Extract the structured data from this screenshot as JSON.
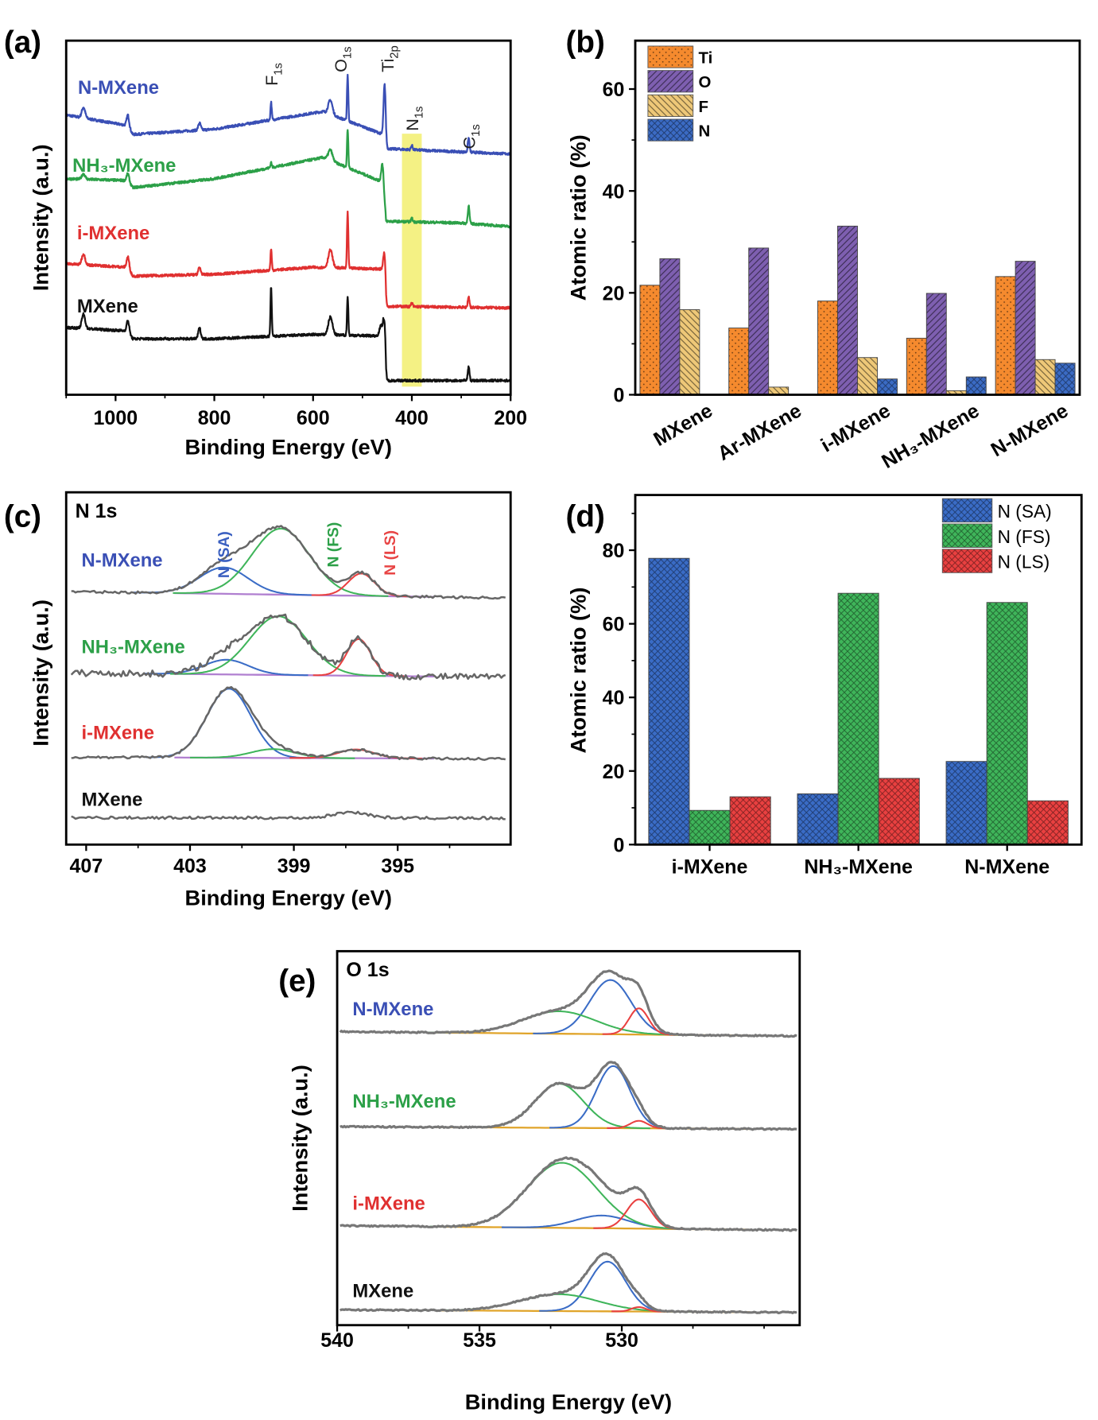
{
  "figure": {
    "panel_labels": [
      "(a)",
      "(b)",
      "(c)",
      "(d)",
      "(e)"
    ]
  },
  "chart_data": [
    {
      "panel": "(a)",
      "type": "line",
      "xlabel": "Binding Energy (eV)",
      "ylabel": "Intensity (a.u.)",
      "xlim": [
        1100,
        200
      ],
      "x_reversed": true,
      "xticks": [
        1000,
        800,
        600,
        400,
        200
      ],
      "ylim": [
        0,
        100
      ],
      "grid": false,
      "highlight_band": [
        380,
        420
      ],
      "highlight_color": "#f2ee6e",
      "annotations": [
        {
          "main": "F",
          "sub": "1s",
          "x": 685
        },
        {
          "main": "O",
          "sub": "1s",
          "x": 545
        },
        {
          "main": "Ti",
          "sub": "2p",
          "x": 450
        },
        {
          "main": "N",
          "sub": "1s",
          "x": 400
        },
        {
          "main": "C",
          "sub": "1s",
          "x": 285
        }
      ],
      "series": [
        {
          "name": "N-MXene",
          "color": "#3a4fb5",
          "background": [
            [
              200,
              68
            ],
            [
              452,
              69.5
            ],
            [
              458,
              73.5
            ],
            [
              580,
              80
            ],
            [
              800,
              75
            ],
            [
              965,
              73.5
            ],
            [
              975,
              76
            ],
            [
              1100,
              79
            ]
          ],
          "peaks": [
            [
              285,
              4,
              4
            ],
            [
              400,
              1.2,
              4
            ],
            [
              455,
              16,
              5
            ],
            [
              530,
              13,
              3
            ],
            [
              565,
              4,
              10
            ],
            [
              685,
              5,
              3
            ],
            [
              830,
              2,
              6
            ],
            [
              975,
              3,
              6
            ],
            [
              1065,
              3,
              8
            ]
          ]
        },
        {
          "name": "NH₃-MXene",
          "color": "#2ca048",
          "background": [
            [
              200,
              47.5
            ],
            [
              300,
              48.5
            ],
            [
              452,
              49
            ],
            [
              458,
              60
            ],
            [
              580,
              67
            ],
            [
              800,
              61
            ],
            [
              965,
              58.5
            ],
            [
              975,
              60.5
            ],
            [
              1100,
              61
            ]
          ],
          "peaks": [
            [
              285,
              5,
              4
            ],
            [
              400,
              1,
              4
            ],
            [
              460,
              5,
              5
            ],
            [
              530,
              11,
              3
            ],
            [
              565,
              3,
              10
            ],
            [
              685,
              1.5,
              3
            ],
            [
              975,
              2,
              6
            ],
            [
              1065,
              1.5,
              8
            ]
          ]
        },
        {
          "name": "i-MXene",
          "color": "#e03030",
          "background": [
            [
              200,
              24.5
            ],
            [
              452,
              25
            ],
            [
              458,
              35.5
            ],
            [
              600,
              36
            ],
            [
              800,
              34
            ],
            [
              965,
              33.5
            ],
            [
              975,
              36
            ],
            [
              1100,
              37
            ]
          ],
          "peaks": [
            [
              285,
              3,
              4
            ],
            [
              400,
              1,
              4
            ],
            [
              455,
              9,
              5
            ],
            [
              530,
              16,
              3
            ],
            [
              565,
              5,
              10
            ],
            [
              685,
              6,
              3
            ],
            [
              830,
              2,
              6
            ],
            [
              975,
              3,
              6
            ],
            [
              1065,
              3,
              8
            ]
          ]
        },
        {
          "name": "MXene",
          "color": "#111111",
          "background": [
            [
              200,
              4
            ],
            [
              452,
              4
            ],
            [
              458,
              16.6
            ],
            [
              600,
              17
            ],
            [
              800,
              15.8
            ],
            [
              965,
              15.8
            ],
            [
              975,
              18
            ],
            [
              1100,
              19
            ]
          ],
          "peaks": [
            [
              285,
              4,
              4
            ],
            [
              455,
              9,
              5
            ],
            [
              462,
              3,
              8
            ],
            [
              530,
              11,
              3
            ],
            [
              565,
              5,
              10
            ],
            [
              685,
              14,
              3
            ],
            [
              830,
              3,
              6
            ],
            [
              975,
              3,
              6
            ],
            [
              1065,
              4,
              8
            ]
          ]
        }
      ]
    },
    {
      "panel": "(b)",
      "type": "bar",
      "ylabel": "Atomic ratio (%)",
      "xlabel": "",
      "ylim": [
        0,
        69.5
      ],
      "yticks": [
        0,
        20,
        40,
        60
      ],
      "legend": "top-left",
      "categories": [
        "MXene",
        "Ar-MXene",
        "i-MXene",
        "NH₃-MXene",
        "N-MXene"
      ],
      "series": [
        {
          "name": "Ti",
          "color": "#f58a2e",
          "pattern": "dots",
          "values": [
            21.5,
            13.1,
            18.4,
            11.1,
            23.2
          ]
        },
        {
          "name": "O",
          "color": "#7e5fb0",
          "pattern": "right-hatch",
          "values": [
            26.7,
            28.8,
            33.1,
            19.9,
            26.2
          ]
        },
        {
          "name": "F",
          "color": "#eec878",
          "pattern": "left-hatch",
          "values": [
            16.7,
            1.5,
            7.3,
            0.8,
            6.9
          ]
        },
        {
          "name": "N",
          "color": "#3b6bc4",
          "pattern": "crosshatch",
          "values": [
            0,
            0,
            3.1,
            3.5,
            6.2
          ]
        }
      ]
    },
    {
      "panel": "(c)",
      "type": "line",
      "title": "N 1s",
      "xlabel": "Binding Energy (eV)",
      "ylabel": "Intensity (a.u.)",
      "xlim": [
        407.77,
        390.65
      ],
      "x_reversed": true,
      "xticks": [
        407,
        403,
        399,
        395
      ],
      "ylim": [
        0,
        100
      ],
      "grid": false,
      "baseline_color": "#b07fd0",
      "total_color": "#666666",
      "component_labels": [
        {
          "text": "N (SA)",
          "color": "#3a5fc0",
          "x": 401.7
        },
        {
          "text": "N (FS)",
          "color": "#2ca048",
          "x": 397.5
        },
        {
          "text": "N (LS)",
          "color": "#e84545",
          "x": 395.3
        }
      ],
      "series": [
        {
          "name": "N-MXene",
          "color": "#3a4fb5",
          "fitted": true,
          "baseline": [
            86.2,
            84
          ],
          "components": [
            {
              "name": "N (SA)",
              "color": "#3a6cc6",
              "center": 401.7,
              "height": 9,
              "fwhm": 2.2
            },
            {
              "name": "N (FS)",
              "color": "#3fb55a",
              "center": 399.5,
              "height": 22.5,
              "fwhm": 2.6
            },
            {
              "name": "N (LS)",
              "color": "#e94040",
              "center": 396.4,
              "height": 7.6,
              "fwhm": 1.2
            }
          ]
        },
        {
          "name": "NH₃-MXene",
          "color": "#2ca048",
          "fitted": true,
          "baseline": [
            58.5,
            57
          ],
          "components": [
            {
              "name": "N (SA)",
              "color": "#3a6cc6",
              "center": 401.6,
              "height": 5,
              "fwhm": 2.0
            },
            {
              "name": "N (FS)",
              "color": "#3fb55a",
              "center": 399.6,
              "height": 20,
              "fwhm": 2.6
            },
            {
              "name": "N (LS)",
              "color": "#e94040",
              "center": 396.5,
              "height": 12.5,
              "fwhm": 1.1
            }
          ]
        },
        {
          "name": "i-MXene",
          "color": "#e03030",
          "fitted": true,
          "baseline": [
            29.8,
            29.2
          ],
          "components": [
            {
              "name": "N (SA)",
              "color": "#3a6cc6",
              "center": 401.5,
              "height": 23.5,
              "fwhm": 2.0
            },
            {
              "name": "N (FS)",
              "color": "#3fb55a",
              "center": 399.8,
              "height": 3,
              "fwhm": 2.0
            },
            {
              "name": "N (LS)",
              "color": "#e94040",
              "center": 396.6,
              "height": 3,
              "fwhm": 1.6
            }
          ]
        },
        {
          "name": "MXene",
          "color": "#111111",
          "fitted": false,
          "baseline": [
            9.2,
            9
          ],
          "components": [
            {
              "center": 396.8,
              "height": 2,
              "fwhm": 1.5
            }
          ]
        }
      ]
    },
    {
      "panel": "(d)",
      "type": "bar",
      "ylabel": "Atomic ratio (%)",
      "xlabel": "",
      "ylim": [
        0,
        95
      ],
      "yticks": [
        0,
        20,
        40,
        60,
        80
      ],
      "legend": "top-right",
      "categories": [
        "i-MXene",
        "NH₃-MXene",
        "N-MXene"
      ],
      "series": [
        {
          "name": "N (SA)",
          "color": "#3a6cc6",
          "values": [
            77.8,
            13.8,
            22.6
          ]
        },
        {
          "name": "N (FS)",
          "color": "#3fb55a",
          "values": [
            9.3,
            68.3,
            65.8
          ]
        },
        {
          "name": "N (LS)",
          "color": "#e94040",
          "values": [
            13.0,
            18.0,
            11.9
          ]
        }
      ]
    },
    {
      "panel": "(e)",
      "type": "line",
      "title": "O 1s",
      "xlabel": "Binding Energy (eV)",
      "ylabel": "Intensity (a.u.)",
      "xlim": [
        540,
        523.75
      ],
      "x_reversed": true,
      "xticks": [
        540,
        535,
        530
      ],
      "ylim": [
        0,
        100
      ],
      "grid": false,
      "baseline_color": "#e0a42a",
      "total_color": "#777777",
      "series": [
        {
          "name": "N-MXene",
          "color": "#3a4fb5",
          "baseline": [
            78.5,
            77.3
          ],
          "components": [
            {
              "color": "#3a6cc6",
              "center": 530.4,
              "height": 14.5,
              "fwhm": 1.7
            },
            {
              "color": "#3fb55a",
              "center": 532.2,
              "height": 6,
              "fwhm": 3.0
            },
            {
              "color": "#e94040",
              "center": 529.4,
              "height": 7,
              "fwhm": 0.8
            }
          ]
        },
        {
          "name": "NH₃-MXene",
          "color": "#2ca048",
          "baseline": [
            53.1,
            52.4
          ],
          "components": [
            {
              "color": "#3a6cc6",
              "center": 530.3,
              "height": 16.6,
              "fwhm": 1.4
            },
            {
              "color": "#3fb55a",
              "center": 532.2,
              "height": 11.8,
              "fwhm": 2.0
            },
            {
              "color": "#e94040",
              "center": 529.4,
              "height": 2,
              "fwhm": 0.7
            }
          ]
        },
        {
          "name": "i-MXene",
          "color": "#e03030",
          "baseline": [
            26.6,
            25.4
          ],
          "components": [
            {
              "color": "#3a6cc6",
              "center": 530.7,
              "height": 3.4,
              "fwhm": 2.2
            },
            {
              "color": "#3fb55a",
              "center": 532.1,
              "height": 17.4,
              "fwhm": 2.9
            },
            {
              "color": "#e94040",
              "center": 529.4,
              "height": 7.8,
              "fwhm": 1.0
            }
          ]
        },
        {
          "name": "MXene",
          "color": "#111111",
          "baseline": [
            4.1,
            3.4
          ],
          "components": [
            {
              "color": "#3a6cc6",
              "center": 530.5,
              "height": 13.3,
              "fwhm": 1.5
            },
            {
              "color": "#3fb55a",
              "center": 532.2,
              "height": 4.5,
              "fwhm": 3.2
            },
            {
              "color": "#e94040",
              "center": 529.4,
              "height": 1.2,
              "fwhm": 0.6
            }
          ]
        }
      ]
    }
  ]
}
